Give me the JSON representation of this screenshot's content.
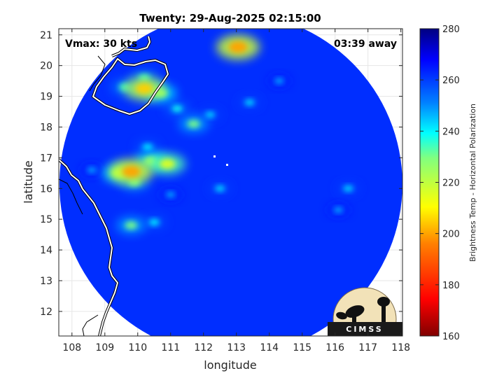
{
  "chart_data": {
    "type": "heatmap",
    "title": "Twenty: 29-Aug-2025 02:15:00",
    "xlabel": "longitude",
    "ylabel": "latitude",
    "xlim": [
      107.6,
      118.05
    ],
    "ylim": [
      11.2,
      21.2
    ],
    "x_ticks": [
      "108",
      "109",
      "110",
      "111",
      "112",
      "113",
      "114",
      "115",
      "116",
      "117",
      "118"
    ],
    "y_ticks": [
      "12",
      "13",
      "14",
      "15",
      "16",
      "17",
      "18",
      "19",
      "20",
      "21"
    ],
    "grid": true,
    "annotations": {
      "vmax": "Vmax: 30 kts",
      "away": "03:39 away"
    },
    "swath_center": {
      "lon": 112.85,
      "lat": 16.25
    },
    "background_tb": 262,
    "cells": [
      {
        "lon": 110.2,
        "lat": 19.25,
        "tb": 205
      },
      {
        "lon": 110.7,
        "lat": 19.1,
        "tb": 225
      },
      {
        "lon": 109.6,
        "lat": 19.3,
        "tb": 235
      },
      {
        "lon": 110.2,
        "lat": 19.6,
        "tb": 235
      },
      {
        "lon": 111.2,
        "lat": 18.6,
        "tb": 238
      },
      {
        "lon": 111.7,
        "lat": 18.1,
        "tb": 230
      },
      {
        "lon": 112.2,
        "lat": 18.4,
        "tb": 242
      },
      {
        "lon": 109.8,
        "lat": 16.55,
        "tb": 200
      },
      {
        "lon": 109.4,
        "lat": 16.5,
        "tb": 225
      },
      {
        "lon": 110.4,
        "lat": 16.9,
        "tb": 225
      },
      {
        "lon": 110.9,
        "lat": 16.8,
        "tb": 215
      },
      {
        "lon": 109.9,
        "lat": 16.2,
        "tb": 232
      },
      {
        "lon": 109.8,
        "lat": 14.8,
        "tb": 230
      },
      {
        "lon": 110.5,
        "lat": 14.9,
        "tb": 240
      },
      {
        "lon": 110.3,
        "lat": 17.35,
        "tb": 240
      },
      {
        "lon": 113.05,
        "lat": 20.6,
        "tb": 200
      },
      {
        "lon": 113.4,
        "lat": 18.8,
        "tb": 242
      },
      {
        "lon": 114.3,
        "lat": 19.5,
        "tb": 246
      },
      {
        "lon": 112.5,
        "lat": 16.0,
        "tb": 242
      },
      {
        "lon": 116.4,
        "lat": 16.0,
        "tb": 242
      },
      {
        "lon": 116.1,
        "lat": 15.3,
        "tb": 246
      },
      {
        "lon": 111.0,
        "lat": 15.8,
        "tb": 246
      },
      {
        "lon": 108.6,
        "lat": 16.6,
        "tb": 246
      }
    ],
    "colorbar": {
      "label": "Brightness Temp - Horizontal Polarization",
      "min": 160,
      "max": 280,
      "ticks": [
        "160",
        "180",
        "200",
        "220",
        "240",
        "260",
        "280"
      ],
      "colormap": [
        "#800000",
        "#ff0000",
        "#ff8000",
        "#ffff00",
        "#80ff80",
        "#00ffff",
        "#0080ff",
        "#0000ff",
        "#000080"
      ]
    },
    "logo_text": "CIMSS"
  }
}
